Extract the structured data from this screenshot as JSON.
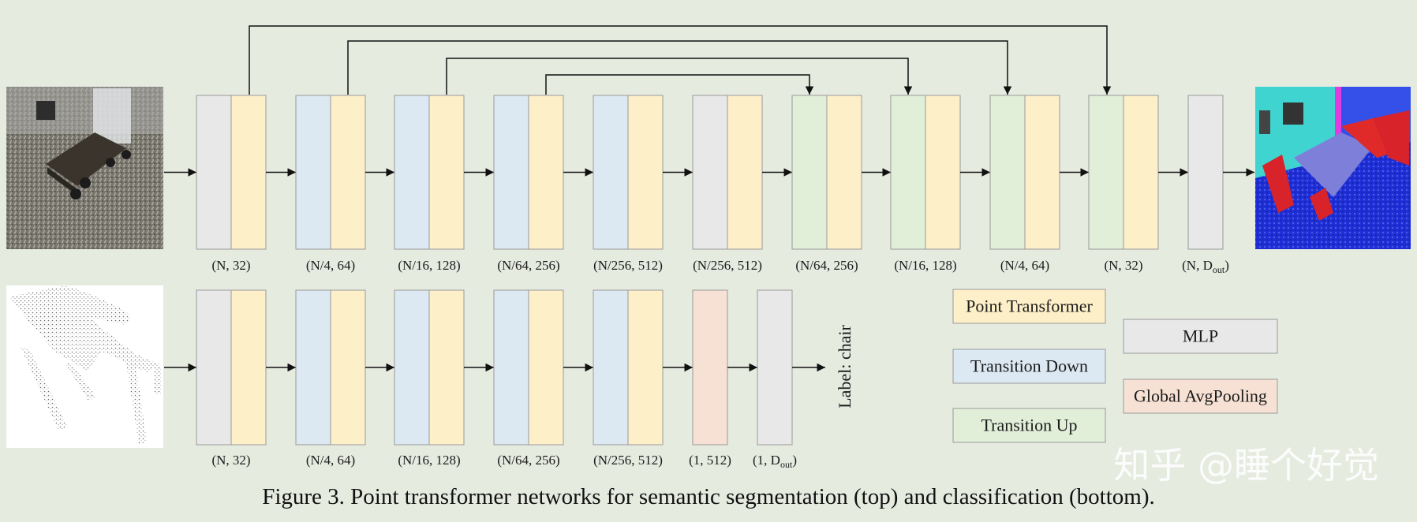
{
  "colors": {
    "point_transformer": "#fdefc8",
    "transition_down": "#dce8f2",
    "transition_up": "#e1efd9",
    "mlp": "#e8e8e8",
    "global_avgpooling": "#f6e1d4"
  },
  "top_row": {
    "blocks": [
      {
        "left": "mlp",
        "right": "point_transformer",
        "label": "(N, 32)"
      },
      {
        "left": "transition_down",
        "right": "point_transformer",
        "label": "(N/4, 64)"
      },
      {
        "left": "transition_down",
        "right": "point_transformer",
        "label": "(N/16, 128)"
      },
      {
        "left": "transition_down",
        "right": "point_transformer",
        "label": "(N/64, 256)"
      },
      {
        "left": "transition_down",
        "right": "point_transformer",
        "label": "(N/256, 512)"
      },
      {
        "left": "mlp",
        "right": "point_transformer",
        "label": "(N/256, 512)"
      },
      {
        "left": "transition_up",
        "right": "point_transformer",
        "label": "(N/64, 256)"
      },
      {
        "left": "transition_up",
        "right": "point_transformer",
        "label": "(N/16, 128)"
      },
      {
        "left": "transition_up",
        "right": "point_transformer",
        "label": "(N/4, 64)"
      },
      {
        "left": "transition_up",
        "right": "point_transformer",
        "label": "(N, 32)"
      },
      {
        "single": "mlp",
        "label": "(N, D",
        "label_sub": "out",
        ",": "",
        "label_end": ")"
      }
    ]
  },
  "bottom_row": {
    "blocks": [
      {
        "left": "mlp",
        "right": "point_transformer",
        "label": "(N, 32)"
      },
      {
        "left": "transition_down",
        "right": "point_transformer",
        "label": "(N/4, 64)"
      },
      {
        "left": "transition_down",
        "right": "point_transformer",
        "label": "(N/16, 128)"
      },
      {
        "left": "transition_down",
        "right": "point_transformer",
        "label": "(N/64, 256)"
      },
      {
        "left": "transition_down",
        "right": "point_transformer",
        "label": "(N/256, 512)"
      },
      {
        "single": "global_avgpooling",
        "label": "(1, 512)"
      },
      {
        "single": "mlp",
        "label": "(1, D",
        "label_sub": "out",
        "label_end": ")"
      }
    ],
    "output_label": "Label: chair"
  },
  "legend": [
    {
      "text": "Point Transformer",
      "color": "point_transformer"
    },
    {
      "text": "Transition Down",
      "color": "transition_down"
    },
    {
      "text": "Transition Up",
      "color": "transition_up"
    },
    {
      "text": "MLP",
      "color": "mlp"
    },
    {
      "text": "Global AvgPooling",
      "color": "global_avgpooling"
    }
  ],
  "watermark": "知乎 @睡个好觉",
  "caption": "Figure 3. Point transformer networks for semantic segmentation (top) and classification (bottom)."
}
